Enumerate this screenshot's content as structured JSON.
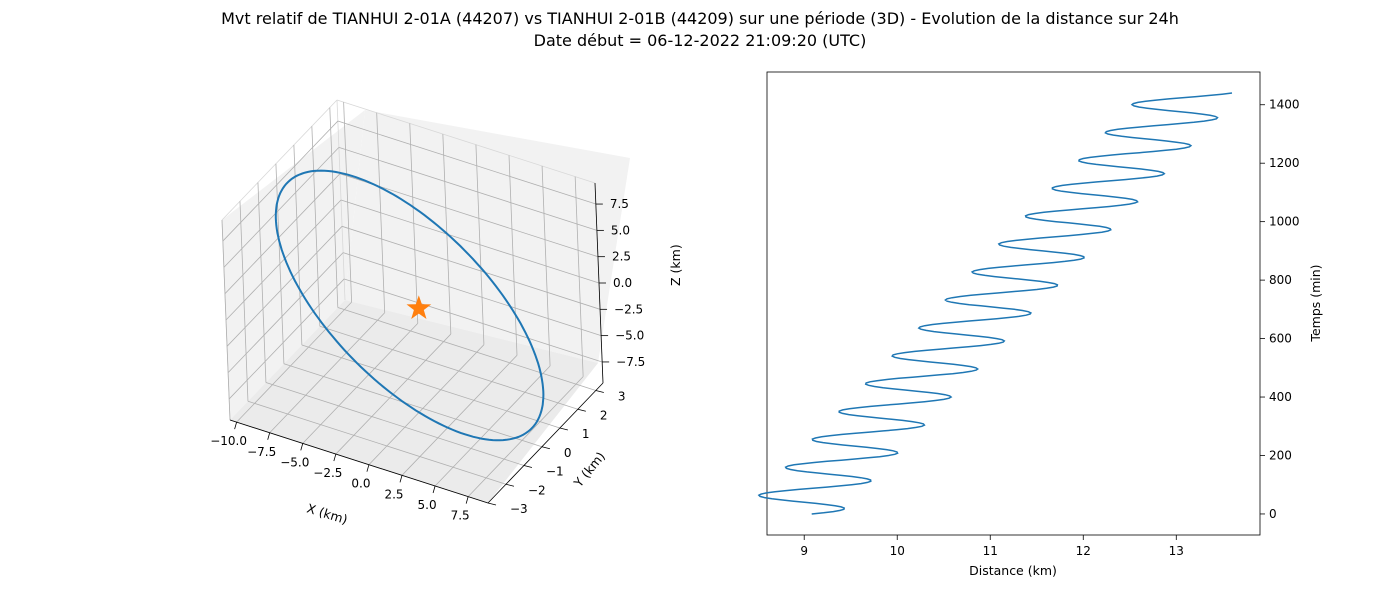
{
  "figure": {
    "title_line1": "Mvt relatif de TIANHUI 2-01A (44207) vs TIANHUI 2-01B (44209) sur une période (3D) - Evolution de la distance sur 24h",
    "title_line2": "Date début = 06-12-2022 21:09:20 (UTC)"
  },
  "chart_data": [
    {
      "type": "line3d",
      "xlabel": "X (km)",
      "ylabel": "Y (km)",
      "zlabel": "Z (km)",
      "xlim": [
        -10.5,
        9.0
      ],
      "ylim": [
        -3.0,
        3.4
      ],
      "zlim": [
        -9.5,
        9.5
      ],
      "xticks": [
        -10.0,
        -7.5,
        -5.0,
        -2.5,
        0.0,
        2.5,
        5.0,
        7.5
      ],
      "xtick_labels": [
        "−10.0",
        "−7.5",
        "−5.0",
        "−2.5",
        "0.0",
        "2.5",
        "5.0",
        "7.5"
      ],
      "yticks": [
        -3,
        -2,
        -1,
        0,
        1,
        2,
        3
      ],
      "ytick_labels": [
        "−3",
        "−2",
        "−1",
        "0",
        "1",
        "2",
        "3"
      ],
      "zticks": [
        -7.5,
        -5.0,
        -2.5,
        0.0,
        2.5,
        5.0,
        7.5
      ],
      "ztick_labels": [
        "−7.5",
        "−5.0",
        "−2.5",
        "0.0",
        "2.5",
        "5.0",
        "7.5"
      ],
      "orbit": {
        "x_amplitude": 9.0,
        "y_amplitude": 3.0,
        "z_amplitude": 8.0,
        "x_center": -0.7,
        "samples": 181
      },
      "marker": {
        "x": 0.0,
        "y": 0.0,
        "z": 0.0,
        "shape": "star"
      },
      "grid": true,
      "colors": {
        "line": "#1f77b4",
        "marker": "#ff7f0e"
      }
    },
    {
      "type": "line",
      "xlabel": "Distance (km)",
      "ylabel": "Temps (min)",
      "xlim": [
        8.6,
        13.9
      ],
      "ylim": [
        -72,
        1512
      ],
      "xticks": [
        9,
        10,
        11,
        12,
        13
      ],
      "xtick_labels": [
        "9",
        "10",
        "11",
        "12",
        "13"
      ],
      "yticks": [
        0,
        200,
        400,
        600,
        800,
        1000,
        1200,
        1400
      ],
      "ytick_labels": [
        "0",
        "200",
        "400",
        "600",
        "800",
        "1000",
        "1200",
        "1400"
      ],
      "y_axis_side": "right",
      "series": [
        {
          "time_min": {
            "start": 0,
            "end": 1440,
            "step": 4
          },
          "distance_trend_km": {
            "start": 8.85,
            "slope_per_min": 0.003
          },
          "oscillation": {
            "amplitude_km": 0.53,
            "period_min": 95.5,
            "phase_offset": 0.45
          },
          "color": "#1f77b4"
        }
      ]
    }
  ]
}
